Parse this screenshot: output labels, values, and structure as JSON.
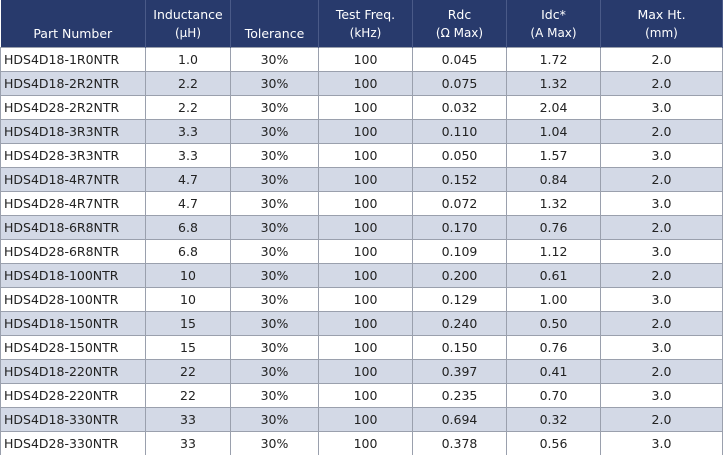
{
  "table": {
    "header": [
      [
        "Part Number"
      ],
      [
        "Inductance",
        "(µH)"
      ],
      [
        "Tolerance"
      ],
      [
        "Test Freq.",
        "(kHz)"
      ],
      [
        "Rdc",
        "(Ω Max)"
      ],
      [
        "Idc*",
        "(A Max)"
      ],
      [
        "Max Ht.",
        "(mm)"
      ]
    ],
    "rows": [
      [
        "HDS4D18-1R0NTR",
        "1.0",
        "30%",
        "100",
        "0.045",
        "1.72",
        "2.0"
      ],
      [
        "HDS4D18-2R2NTR",
        "2.2",
        "30%",
        "100",
        "0.075",
        "1.32",
        "2.0"
      ],
      [
        "HDS4D28-2R2NTR",
        "2.2",
        "30%",
        "100",
        "0.032",
        "2.04",
        "3.0"
      ],
      [
        "HDS4D18-3R3NTR",
        "3.3",
        "30%",
        "100",
        "0.110",
        "1.04",
        "2.0"
      ],
      [
        "HDS4D28-3R3NTR",
        "3.3",
        "30%",
        "100",
        "0.050",
        "1.57",
        "3.0"
      ],
      [
        "HDS4D18-4R7NTR",
        "4.7",
        "30%",
        "100",
        "0.152",
        "0.84",
        "2.0"
      ],
      [
        "HDS4D28-4R7NTR",
        "4.7",
        "30%",
        "100",
        "0.072",
        "1.32",
        "3.0"
      ],
      [
        "HDS4D18-6R8NTR",
        "6.8",
        "30%",
        "100",
        "0.170",
        "0.76",
        "2.0"
      ],
      [
        "HDS4D28-6R8NTR",
        "6.8",
        "30%",
        "100",
        "0.109",
        "1.12",
        "3.0"
      ],
      [
        "HDS4D18-100NTR",
        "10",
        "30%",
        "100",
        "0.200",
        "0.61",
        "2.0"
      ],
      [
        "HDS4D28-100NTR",
        "10",
        "30%",
        "100",
        "0.129",
        "1.00",
        "3.0"
      ],
      [
        "HDS4D18-150NTR",
        "15",
        "30%",
        "100",
        "0.240",
        "0.50",
        "2.0"
      ],
      [
        "HDS4D28-150NTR",
        "15",
        "30%",
        "100",
        "0.150",
        "0.76",
        "3.0"
      ],
      [
        "HDS4D18-220NTR",
        "22",
        "30%",
        "100",
        "0.397",
        "0.41",
        "2.0"
      ],
      [
        "HDS4D28-220NTR",
        "22",
        "30%",
        "100",
        "0.235",
        "0.70",
        "3.0"
      ],
      [
        "HDS4D18-330NTR",
        "33",
        "30%",
        "100",
        "0.694",
        "0.32",
        "2.0"
      ],
      [
        "HDS4D28-330NTR",
        "33",
        "30%",
        "100",
        "0.378",
        "0.56",
        "3.0"
      ]
    ]
  }
}
